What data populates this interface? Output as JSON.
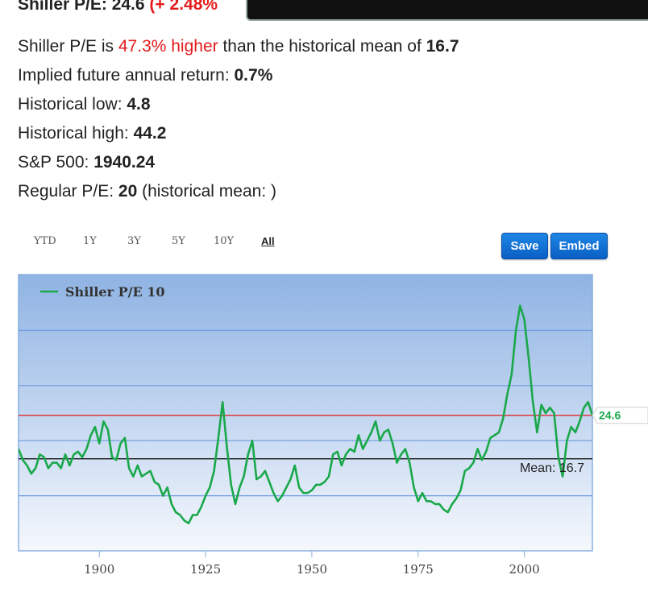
{
  "header": {
    "title_prefix": "Shiller P/E: 24.6",
    "title_change": "(+ 2.48%"
  },
  "stats": {
    "line1_prefix": "Shiller P/E is ",
    "line1_pct": "47.3% higher",
    "line1_mid": " than the historical mean of ",
    "line1_mean": "16.7",
    "line2_label": "Implied future annual return: ",
    "line2_value": "0.7%",
    "line3_label": "Historical low: ",
    "line3_value": "4.8",
    "line4_label": "Historical high: ",
    "line4_value": "44.2",
    "line5_label": "S&P 500: ",
    "line5_value": "1940.24",
    "line6_label": "Regular P/E: ",
    "line6_value": "20",
    "line6_suffix": " (historical mean: )"
  },
  "ranges": [
    "YTD",
    "1Y",
    "3Y",
    "5Y",
    "10Y",
    "All"
  ],
  "active_range": "All",
  "buttons": {
    "save": "Save",
    "embed": "Embed"
  },
  "colors": {
    "series": "#1aa84a",
    "mean_line": "#000000",
    "current_line": "#e31b1b",
    "plot_top": "#8fb3e3",
    "plot_bottom": "#f5f8fd"
  },
  "chart_data": {
    "type": "line",
    "legend": "Shiller P/E 10",
    "mean_label": "Mean: 16.7",
    "mean": 16.7,
    "current": 24.6,
    "current_label": "24.6",
    "x_ticks": [
      1900,
      1925,
      1950,
      1975,
      2000
    ],
    "xlim": [
      1881,
      2016
    ],
    "ylim": [
      0,
      50
    ],
    "gridlines": [
      10,
      20,
      30,
      40
    ],
    "series": [
      {
        "name": "Shiller P/E 10",
        "x": [
          1881,
          1882,
          1883,
          1884,
          1885,
          1886,
          1887,
          1888,
          1889,
          1890,
          1891,
          1892,
          1893,
          1894,
          1895,
          1896,
          1897,
          1898,
          1899,
          1900,
          1901,
          1902,
          1903,
          1904,
          1905,
          1906,
          1907,
          1908,
          1909,
          1910,
          1911,
          1912,
          1913,
          1914,
          1915,
          1916,
          1917,
          1918,
          1919,
          1920,
          1921,
          1922,
          1923,
          1924,
          1925,
          1926,
          1927,
          1928,
          1929,
          1930,
          1931,
          1932,
          1933,
          1934,
          1935,
          1936,
          1937,
          1938,
          1939,
          1940,
          1941,
          1942,
          1943,
          1944,
          1945,
          1946,
          1947,
          1948,
          1949,
          1950,
          1951,
          1952,
          1953,
          1954,
          1955,
          1956,
          1957,
          1958,
          1959,
          1960,
          1961,
          1962,
          1963,
          1964,
          1965,
          1966,
          1967,
          1968,
          1969,
          1970,
          1971,
          1972,
          1973,
          1974,
          1975,
          1976,
          1977,
          1978,
          1979,
          1980,
          1981,
          1982,
          1983,
          1984,
          1985,
          1986,
          1987,
          1988,
          1989,
          1990,
          1991,
          1992,
          1993,
          1994,
          1995,
          1996,
          1997,
          1998,
          1999,
          2000,
          2001,
          2002,
          2003,
          2004,
          2005,
          2006,
          2007,
          2008,
          2009,
          2010,
          2011,
          2012,
          2013,
          2014,
          2015,
          2016
        ],
        "values": [
          18.5,
          16.5,
          15.5,
          14.0,
          15.0,
          17.5,
          17.0,
          15.0,
          16.0,
          16.0,
          15.0,
          17.5,
          15.5,
          17.5,
          18.0,
          17.0,
          18.5,
          21.0,
          22.5,
          19.5,
          23.5,
          22.0,
          17.0,
          16.5,
          19.5,
          20.5,
          15.0,
          13.5,
          15.5,
          13.5,
          14.0,
          14.5,
          12.5,
          12.0,
          10.0,
          11.5,
          8.5,
          7.0,
          6.5,
          5.5,
          5.0,
          6.5,
          6.5,
          8.0,
          10.0,
          11.5,
          14.5,
          20.5,
          27.0,
          19.0,
          12.0,
          8.5,
          11.5,
          13.5,
          17.5,
          20.0,
          13.0,
          13.5,
          14.5,
          12.5,
          10.5,
          9.0,
          10.0,
          11.5,
          13.0,
          15.5,
          11.5,
          10.5,
          10.5,
          11.0,
          12.0,
          12.0,
          12.5,
          13.5,
          17.5,
          18.0,
          15.5,
          17.5,
          18.5,
          18.0,
          21.0,
          18.5,
          20.0,
          21.5,
          23.5,
          20.0,
          21.5,
          22.0,
          19.5,
          16.0,
          17.5,
          18.5,
          16.0,
          11.5,
          9.0,
          10.5,
          9.0,
          9.0,
          8.5,
          8.5,
          7.5,
          7.0,
          8.5,
          9.5,
          11.0,
          14.5,
          15.0,
          16.0,
          18.5,
          16.5,
          18.0,
          20.5,
          21.0,
          21.5,
          24.0,
          28.5,
          32.0,
          40.0,
          44.5,
          42.0,
          35.0,
          27.0,
          21.5,
          26.5,
          25.0,
          26.0,
          25.0,
          17.0,
          13.5,
          20.0,
          22.5,
          21.5,
          23.5,
          26.0,
          27.0,
          24.6
        ]
      }
    ]
  }
}
